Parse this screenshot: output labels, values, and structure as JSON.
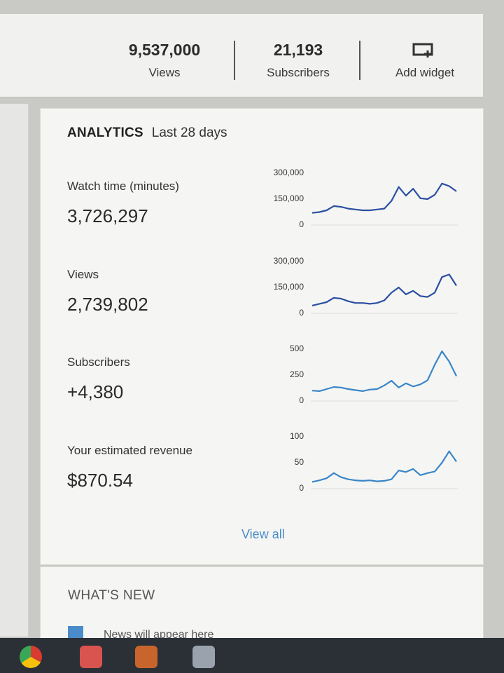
{
  "header_stats": {
    "views_value": "9,537,000",
    "views_label": "Views",
    "subscribers_value": "21,193",
    "subscribers_label": "Subscribers",
    "add_widget_label": "Add widget"
  },
  "analytics": {
    "title": "ANALYTICS",
    "range": "Last 28 days",
    "metrics": [
      {
        "label": "Watch time (minutes)",
        "value": "3,726,297",
        "ticks": [
          "300,000",
          "150,000",
          "0"
        ],
        "max": 300000,
        "points": [
          70000,
          75000,
          85000,
          110000,
          105000,
          95000,
          90000,
          85000,
          85000,
          90000,
          95000,
          140000,
          220000,
          170000,
          210000,
          155000,
          150000,
          175000,
          240000,
          225000,
          195000
        ]
      },
      {
        "label": "Views",
        "value": "2,739,802",
        "ticks": [
          "300,000",
          "150,000",
          "0"
        ],
        "max": 300000,
        "points": [
          45000,
          55000,
          65000,
          90000,
          85000,
          70000,
          60000,
          60000,
          55000,
          60000,
          75000,
          120000,
          150000,
          110000,
          130000,
          100000,
          95000,
          120000,
          210000,
          225000,
          160000
        ]
      },
      {
        "label": "Subscribers",
        "value": "+4,380",
        "ticks": [
          "500",
          "250",
          "0"
        ],
        "max": 500,
        "points": [
          100,
          95,
          115,
          135,
          130,
          115,
          105,
          95,
          110,
          115,
          150,
          195,
          130,
          170,
          140,
          160,
          200,
          350,
          480,
          380,
          240
        ]
      },
      {
        "label": "Your estimated revenue",
        "value": "$870.54",
        "ticks": [
          "100",
          "50",
          "0"
        ],
        "max": 100,
        "points": [
          13,
          16,
          20,
          30,
          22,
          18,
          16,
          15,
          16,
          14,
          15,
          18,
          35,
          32,
          38,
          26,
          30,
          33,
          50,
          72,
          52
        ]
      }
    ],
    "view_all_label": "View all"
  },
  "whats_new": {
    "title": "WHAT'S NEW",
    "item_text": "News will appear here"
  },
  "colors": {
    "line_dark": "#2b4fa3",
    "line_light": "#3a86c8",
    "link": "#4a8cc9"
  }
}
